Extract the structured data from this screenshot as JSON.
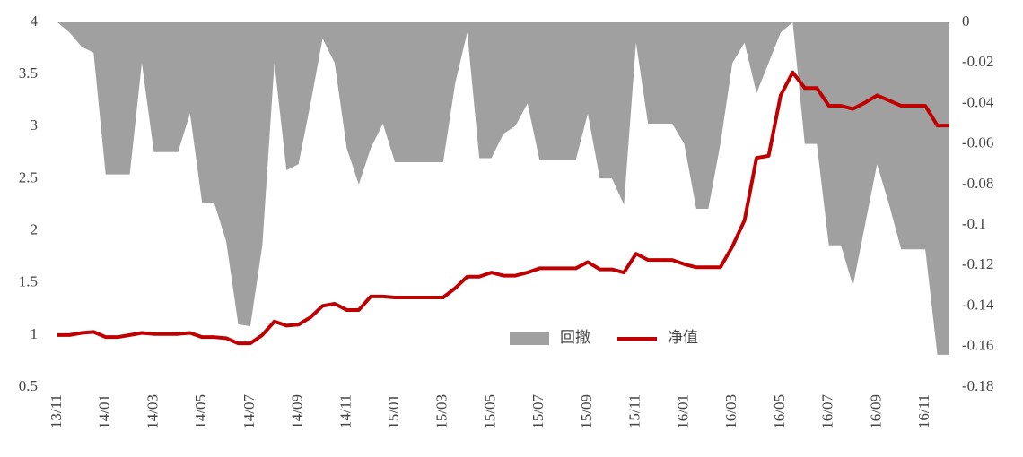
{
  "chart_data": {
    "type": "combo",
    "categories": [
      "13/11",
      null,
      null,
      null,
      "14/01",
      null,
      null,
      null,
      "14/03",
      null,
      null,
      null,
      "14/05",
      null,
      null,
      null,
      "14/07",
      null,
      null,
      null,
      "14/09",
      null,
      null,
      null,
      "14/11",
      null,
      null,
      null,
      "15/01",
      null,
      null,
      null,
      "15/03",
      null,
      null,
      null,
      "15/05",
      null,
      null,
      null,
      "15/07",
      null,
      null,
      null,
      "15/09",
      null,
      null,
      null,
      "15/11",
      null,
      null,
      null,
      "16/01",
      null,
      null,
      null,
      "16/03",
      null,
      null,
      null,
      "16/05",
      null,
      null,
      null,
      "16/07",
      null,
      null,
      null,
      "16/09",
      null,
      null,
      null,
      "16/11",
      null,
      null
    ],
    "series": [
      {
        "name": "回撤",
        "type": "area",
        "axis": "y2",
        "color": "#a0a0a0",
        "values": [
          0,
          -0.005,
          -0.012,
          -0.015,
          -0.075,
          -0.075,
          -0.075,
          -0.02,
          -0.064,
          -0.064,
          -0.064,
          -0.045,
          -0.089,
          -0.089,
          -0.108,
          -0.149,
          -0.15,
          -0.11,
          -0.02,
          -0.073,
          -0.07,
          -0.04,
          -0.008,
          -0.02,
          -0.062,
          -0.08,
          -0.062,
          -0.05,
          -0.069,
          -0.069,
          -0.069,
          -0.069,
          -0.069,
          -0.03,
          -0.005,
          -0.067,
          -0.067,
          -0.055,
          -0.051,
          -0.04,
          -0.068,
          -0.068,
          -0.068,
          -0.068,
          -0.045,
          -0.077,
          -0.077,
          -0.09,
          -0.01,
          -0.05,
          -0.05,
          -0.05,
          -0.06,
          -0.092,
          -0.092,
          -0.06,
          -0.02,
          -0.01,
          -0.035,
          -0.02,
          -0.005,
          0,
          -0.06,
          -0.06,
          -0.11,
          -0.11,
          -0.13,
          -0.1,
          -0.07,
          -0.09,
          -0.112,
          -0.112,
          -0.112,
          -0.164,
          -0.164
        ]
      },
      {
        "name": "净值",
        "type": "line",
        "color": "#c00000",
        "values": [
          1.0,
          1.0,
          1.02,
          1.03,
          0.98,
          0.98,
          1.0,
          1.02,
          1.01,
          1.01,
          1.01,
          1.02,
          0.98,
          0.98,
          0.97,
          0.92,
          0.92,
          1.0,
          1.13,
          1.09,
          1.1,
          1.17,
          1.28,
          1.3,
          1.24,
          1.24,
          1.37,
          1.37,
          1.36,
          1.36,
          1.36,
          1.36,
          1.36,
          1.45,
          1.56,
          1.56,
          1.6,
          1.57,
          1.57,
          1.6,
          1.64,
          1.64,
          1.64,
          1.64,
          1.7,
          1.63,
          1.63,
          1.6,
          1.78,
          1.72,
          1.72,
          1.72,
          1.68,
          1.65,
          1.65,
          1.65,
          1.85,
          2.1,
          2.7,
          2.72,
          3.3,
          3.52,
          3.37,
          3.37,
          3.2,
          3.2,
          3.17,
          3.23,
          3.3,
          3.25,
          3.2,
          3.2,
          3.2,
          3.01,
          3.01
        ]
      }
    ],
    "ylim": [
      0.5,
      4
    ],
    "yticks": [
      4,
      3.5,
      3,
      2.5,
      2,
      1.5,
      1,
      0.5
    ],
    "y2lim": [
      -0.18,
      0
    ],
    "y2ticks": [
      0,
      -0.02,
      -0.04,
      -0.06,
      -0.08,
      -0.1,
      -0.12,
      -0.14,
      -0.16,
      -0.18
    ],
    "grid": false,
    "legend": "center"
  }
}
